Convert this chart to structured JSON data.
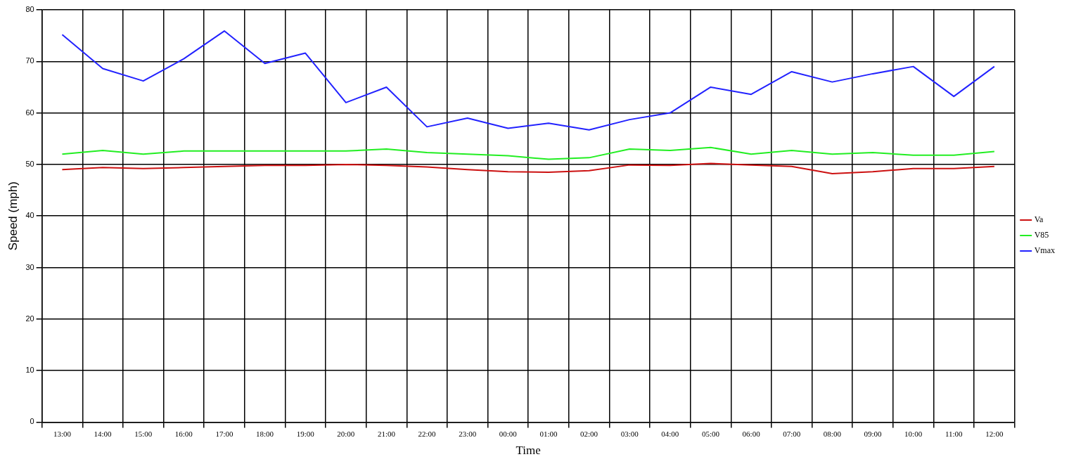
{
  "chart_data": {
    "type": "line",
    "xlabel": "Time",
    "ylabel": "Speed (mph)",
    "categories": [
      "13:00",
      "14:00",
      "15:00",
      "16:00",
      "17:00",
      "18:00",
      "19:00",
      "20:00",
      "21:00",
      "22:00",
      "23:00",
      "00:00",
      "01:00",
      "02:00",
      "03:00",
      "04:00",
      "05:00",
      "06:00",
      "07:00",
      "08:00",
      "09:00",
      "10:00",
      "11:00",
      "12:00"
    ],
    "series": [
      {
        "name": "Va",
        "color": "#cc1111",
        "values": [
          49,
          49.4,
          49.2,
          49.4,
          49.6,
          49.8,
          49.8,
          50,
          49.8,
          49.5,
          49,
          48.6,
          48.5,
          48.8,
          49.9,
          49.8,
          50.2,
          49.9,
          49.6,
          48.2,
          48.6,
          49.2,
          49.2,
          49.6
        ]
      },
      {
        "name": "V85",
        "color": "#22ee22",
        "values": [
          52,
          52.7,
          52,
          52.6,
          52.6,
          52.6,
          52.6,
          52.6,
          53,
          52.3,
          52,
          51.7,
          51,
          51.3,
          53,
          52.7,
          53.3,
          52,
          52.7,
          52,
          52.3,
          51.8,
          51.8,
          52.5
        ]
      },
      {
        "name": "Vmax",
        "color": "#2222ff",
        "values": [
          75.2,
          68.6,
          66.2,
          70.5,
          75.9,
          69.6,
          71.6,
          62,
          65,
          57.3,
          59,
          57,
          58,
          56.7,
          58.7,
          60,
          65,
          63.6,
          68,
          66,
          67.6,
          69,
          63.2,
          69
        ]
      }
    ],
    "ylim": [
      0,
      80
    ],
    "yticks": [
      0,
      10,
      20,
      30,
      40,
      50,
      60,
      70,
      80
    ],
    "grid": true,
    "legend": "right",
    "marker": "none",
    "line_style": "solid"
  }
}
